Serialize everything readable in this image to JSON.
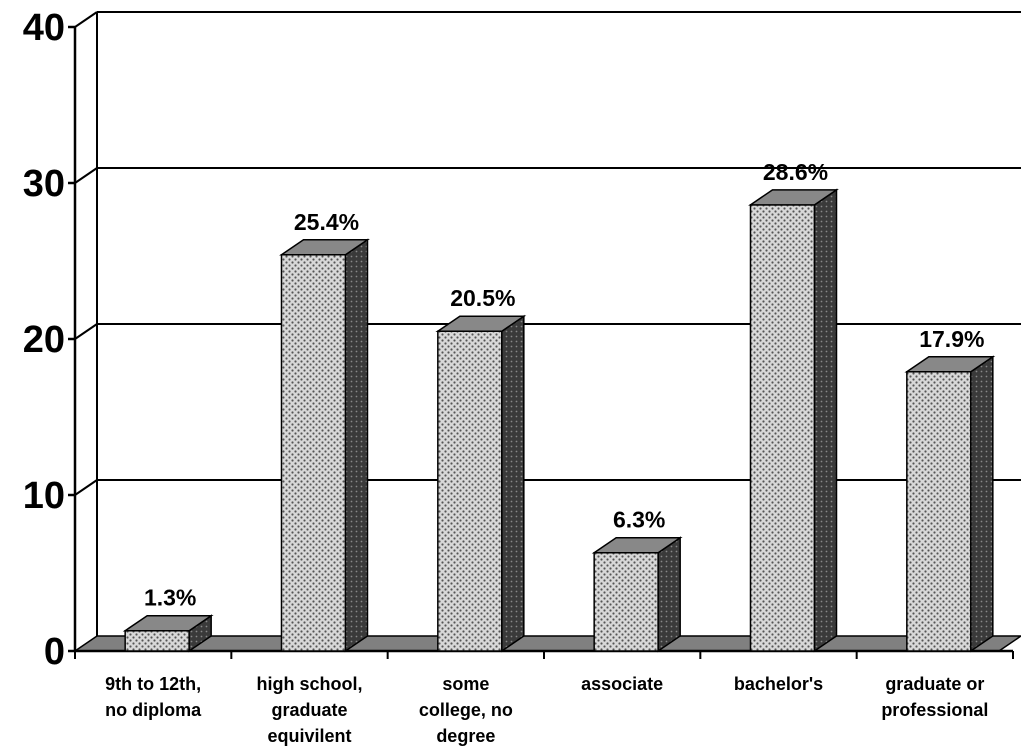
{
  "chart_data": {
    "type": "bar",
    "categories": [
      [
        "9th to 12th,",
        "no diploma"
      ],
      [
        "high school,",
        "graduate",
        "equivilent"
      ],
      [
        "some",
        "college, no",
        "degree"
      ],
      [
        "associate"
      ],
      [
        "bachelor's"
      ],
      [
        "graduate or",
        "professional"
      ]
    ],
    "values": [
      1.3,
      25.4,
      20.5,
      6.3,
      28.6,
      17.9
    ],
    "value_labels": [
      "1.3%",
      "25.4%",
      "20.5%",
      "6.3%",
      "28.6%",
      "17.9%"
    ],
    "yticks": [
      "0",
      "10",
      "20",
      "30",
      "40"
    ],
    "ylim": [
      0,
      40
    ],
    "grid": true,
    "style": "3d-column",
    "colors": {
      "bar_front": "#d8d8d8",
      "bar_dots": "#555555",
      "bar_top": "#888888",
      "bar_side": "#333333",
      "floor": "#808080",
      "axis": "#000000"
    }
  }
}
